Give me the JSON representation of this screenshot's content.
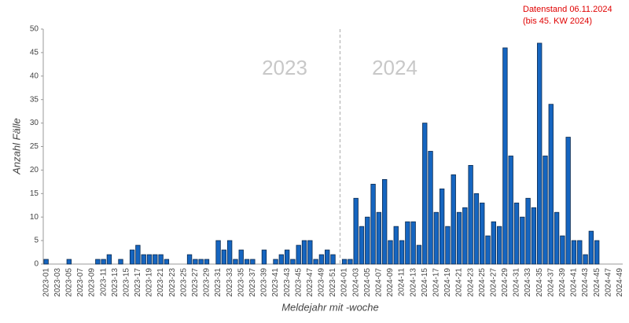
{
  "chart_data": {
    "type": "bar",
    "annotations": [
      "2023",
      "2024",
      "Datenstand 06.11.2024",
      "(bis 45. KW 2024)"
    ],
    "x_label": "Meldejahr mit -woche",
    "y_label": "Anzahl Fälle",
    "categories": [
      "2023-01",
      null,
      "2023-03",
      null,
      "2023-05",
      null,
      "2023-07",
      null,
      "2023-09",
      null,
      "2023-11",
      null,
      "2023-13",
      null,
      "2023-15",
      null,
      "2023-17",
      null,
      "2023-19",
      null,
      "2023-21",
      null,
      "2023-23",
      null,
      "2023-25",
      null,
      "2023-27",
      null,
      "2023-29",
      null,
      "2023-31",
      null,
      "2023-33",
      null,
      "2023-35",
      null,
      "2023-37",
      null,
      "2023-39",
      null,
      "2023-41",
      null,
      "2023-43",
      null,
      "2023-45",
      null,
      "2023-47",
      null,
      "2023-49",
      null,
      "2023-51",
      null,
      "2024-01",
      null,
      "2024-03",
      null,
      "2024-05",
      null,
      "2024-07",
      null,
      "2024-09",
      null,
      "2024-11",
      null,
      "2024-13",
      null,
      "2024-15",
      null,
      "2024-17",
      null,
      "2024-19",
      null,
      "2024-21",
      null,
      "2024-23",
      null,
      "2024-25",
      null,
      "2024-27",
      null,
      "2024-29",
      null,
      "2024-31",
      null,
      "2024-33",
      null,
      "2024-35",
      null,
      "2024-37",
      null,
      "2024-39",
      null,
      "2024-41",
      null,
      "2024-43",
      null,
      "2024-45",
      null,
      "2024-47",
      null,
      "2024-49"
    ],
    "values": [
      1,
      0,
      0,
      0,
      1,
      0,
      0,
      0,
      0,
      1,
      1,
      2,
      0,
      1,
      0,
      3,
      4,
      2,
      2,
      2,
      2,
      1,
      0,
      0,
      0,
      2,
      1,
      1,
      1,
      0,
      5,
      3,
      5,
      1,
      3,
      1,
      1,
      0,
      3,
      0,
      1,
      2,
      3,
      1,
      4,
      5,
      5,
      1,
      2,
      3,
      2,
      0,
      1,
      1,
      14,
      8,
      10,
      17,
      11,
      18,
      5,
      8,
      5,
      9,
      9,
      4,
      30,
      24,
      11,
      16,
      8,
      19,
      11,
      12,
      21,
      15,
      13,
      6,
      9,
      8,
      46,
      23,
      13,
      10,
      14,
      12,
      47,
      23,
      34,
      11,
      6,
      27,
      5,
      5,
      2,
      7,
      5,
      0,
      0,
      0,
      0
    ],
    "color": "#1565c0",
    "ylim": [
      0,
      50
    ],
    "yticks": [
      0,
      5,
      10,
      15,
      20,
      25,
      30,
      35,
      40,
      45,
      50
    ],
    "grid": false
  }
}
